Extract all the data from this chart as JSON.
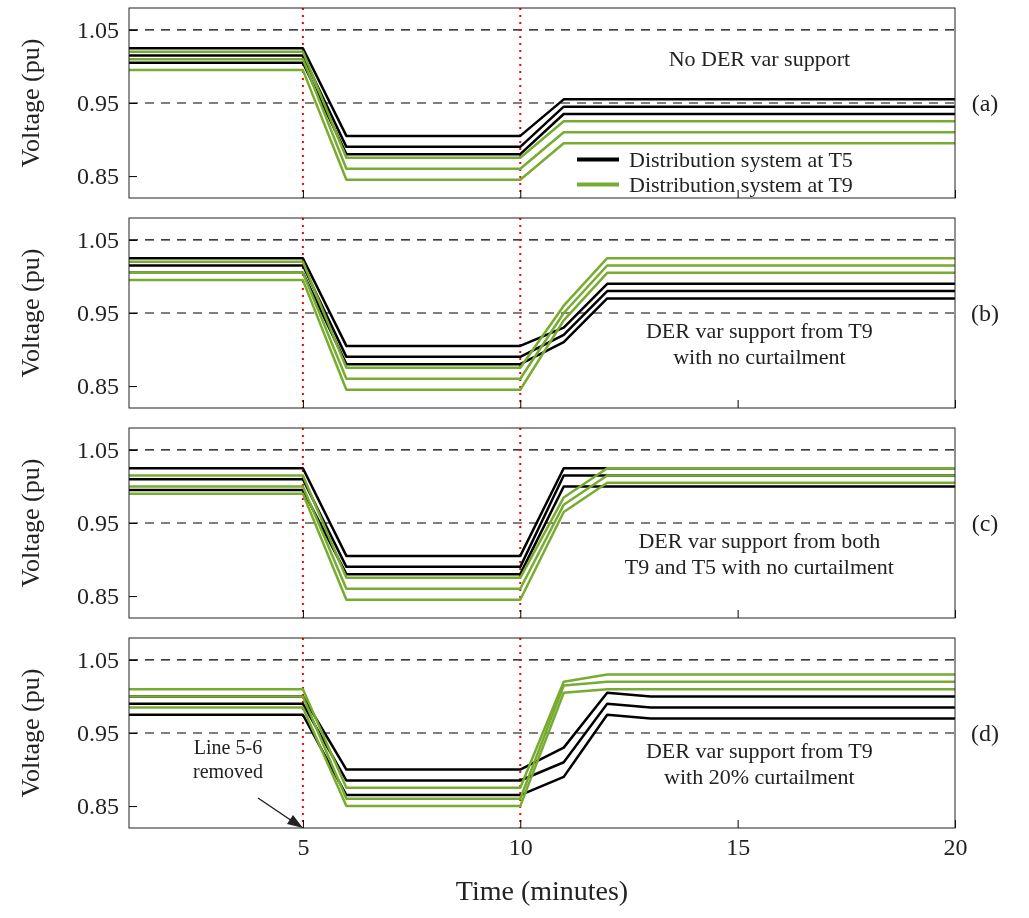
{
  "chart_data": [
    {
      "type": "line",
      "ylabel": "Voltage (pu)",
      "xlim": [
        1,
        20
      ],
      "ylim": [
        0.82,
        1.08
      ],
      "xticks": [
        5,
        10,
        15,
        20
      ],
      "yticks": [
        0.85,
        0.95,
        1.05
      ],
      "tick_labels": "y",
      "legend": "bottom right",
      "line_style": "solid",
      "marker": "none",
      "ref_lines": [
        {
          "axis": "y",
          "value": 1.05,
          "color": "#000000",
          "line_style": "dashed"
        },
        {
          "axis": "y",
          "value": 0.95,
          "color": "#000000",
          "line_style": "dashed"
        },
        {
          "axis": "x",
          "value": 5,
          "color": "#ff0000",
          "line_style": "dotted"
        },
        {
          "axis": "x",
          "value": 10,
          "color": "#ff0000",
          "line_style": "dotted"
        }
      ],
      "annotations": [
        "No DER var support",
        "(a)"
      ],
      "series": [
        {
          "name": "Distribution system at T5",
          "color": "#000000",
          "x": [
            1,
            5,
            6,
            10,
            11,
            20
          ],
          "values": [
            1.025,
            1.025,
            0.905,
            0.905,
            0.955,
            0.955
          ]
        },
        {
          "color": "#000000",
          "x": [
            1,
            5,
            6,
            10,
            11,
            20
          ],
          "values": [
            1.015,
            1.015,
            0.89,
            0.89,
            0.945,
            0.945
          ]
        },
        {
          "color": "#000000",
          "x": [
            1,
            5,
            6,
            10,
            11,
            20
          ],
          "values": [
            1.005,
            1.005,
            0.88,
            0.88,
            0.935,
            0.935
          ]
        },
        {
          "name": "Distribution system at T9",
          "color": "#77ac30",
          "x": [
            1,
            5,
            6,
            10,
            11,
            20
          ],
          "values": [
            1.02,
            1.02,
            0.875,
            0.875,
            0.925,
            0.925
          ]
        },
        {
          "color": "#77ac30",
          "x": [
            1,
            5,
            6,
            10,
            11,
            20
          ],
          "values": [
            1.01,
            1.01,
            0.86,
            0.86,
            0.91,
            0.91
          ]
        },
        {
          "color": "#77ac30",
          "x": [
            1,
            5,
            6,
            10,
            11,
            20
          ],
          "values": [
            0.995,
            0.995,
            0.845,
            0.845,
            0.895,
            0.895
          ]
        }
      ]
    },
    {
      "type": "line",
      "ylabel": "Voltage (pu)",
      "xlim": [
        1,
        20
      ],
      "ylim": [
        0.82,
        1.08
      ],
      "xticks": [
        5,
        10,
        15,
        20
      ],
      "yticks": [
        0.85,
        0.95,
        1.05
      ],
      "tick_labels": "y",
      "line_style": "solid",
      "marker": "none",
      "ref_lines": [
        {
          "axis": "y",
          "value": 1.05,
          "color": "#000000",
          "line_style": "dashed"
        },
        {
          "axis": "y",
          "value": 0.95,
          "color": "#000000",
          "line_style": "dashed"
        },
        {
          "axis": "x",
          "value": 5,
          "color": "#ff0000",
          "line_style": "dotted"
        },
        {
          "axis": "x",
          "value": 10,
          "color": "#ff0000",
          "line_style": "dotted"
        }
      ],
      "annotations": [
        "DER var support from T9\nwith no curtailment",
        "(b)"
      ],
      "series": [
        {
          "color": "#000000",
          "x": [
            1,
            5,
            6,
            10,
            11,
            12,
            20
          ],
          "values": [
            1.025,
            1.025,
            0.905,
            0.905,
            0.93,
            0.99,
            0.99
          ]
        },
        {
          "color": "#000000",
          "x": [
            1,
            5,
            6,
            10,
            11,
            12,
            20
          ],
          "values": [
            1.015,
            1.015,
            0.89,
            0.89,
            0.92,
            0.98,
            0.98
          ]
        },
        {
          "color": "#000000",
          "x": [
            1,
            5,
            6,
            10,
            11,
            12,
            20
          ],
          "values": [
            1.005,
            1.005,
            0.88,
            0.88,
            0.91,
            0.97,
            0.97
          ]
        },
        {
          "color": "#77ac30",
          "x": [
            1,
            5,
            6,
            10,
            11,
            12,
            20
          ],
          "values": [
            1.02,
            1.02,
            0.875,
            0.875,
            0.96,
            1.025,
            1.025
          ]
        },
        {
          "color": "#77ac30",
          "x": [
            1,
            5,
            6,
            10,
            11,
            12,
            20
          ],
          "values": [
            1.005,
            1.005,
            0.86,
            0.86,
            0.95,
            1.015,
            1.015
          ]
        },
        {
          "color": "#77ac30",
          "x": [
            1,
            5,
            6,
            10,
            11,
            12,
            20
          ],
          "values": [
            0.995,
            0.995,
            0.845,
            0.845,
            0.94,
            1.005,
            1.005
          ]
        }
      ]
    },
    {
      "type": "line",
      "ylabel": "Voltage (pu)",
      "xlim": [
        1,
        20
      ],
      "ylim": [
        0.82,
        1.08
      ],
      "xticks": [
        5,
        10,
        15,
        20
      ],
      "yticks": [
        0.85,
        0.95,
        1.05
      ],
      "tick_labels": "y",
      "line_style": "solid",
      "marker": "none",
      "ref_lines": [
        {
          "axis": "y",
          "value": 1.05,
          "color": "#000000",
          "line_style": "dashed"
        },
        {
          "axis": "y",
          "value": 0.95,
          "color": "#000000",
          "line_style": "dashed"
        },
        {
          "axis": "x",
          "value": 5,
          "color": "#ff0000",
          "line_style": "dotted"
        },
        {
          "axis": "x",
          "value": 10,
          "color": "#ff0000",
          "line_style": "dotted"
        }
      ],
      "annotations": [
        "DER var support from both\nT9 and T5 with no curtailment",
        "(c)"
      ],
      "series": [
        {
          "color": "#000000",
          "x": [
            1,
            5,
            6,
            10,
            11,
            12,
            20
          ],
          "values": [
            1.025,
            1.025,
            0.905,
            0.905,
            1.025,
            1.025,
            1.025
          ]
        },
        {
          "color": "#000000",
          "x": [
            1,
            5,
            6,
            10,
            11,
            12,
            20
          ],
          "values": [
            1.01,
            1.01,
            0.89,
            0.89,
            1.015,
            1.015,
            1.015
          ]
        },
        {
          "color": "#000000",
          "x": [
            1,
            5,
            6,
            10,
            11,
            12,
            20
          ],
          "values": [
            0.995,
            0.995,
            0.88,
            0.88,
            1.0,
            1.0,
            1.0
          ]
        },
        {
          "color": "#77ac30",
          "x": [
            1,
            5,
            6,
            10,
            11,
            12,
            20
          ],
          "values": [
            1.015,
            1.015,
            0.875,
            0.875,
            0.985,
            1.025,
            1.025
          ]
        },
        {
          "color": "#77ac30",
          "x": [
            1,
            5,
            6,
            10,
            11,
            12,
            20
          ],
          "values": [
            1.0,
            1.0,
            0.86,
            0.86,
            0.975,
            1.015,
            1.015
          ]
        },
        {
          "color": "#77ac30",
          "x": [
            1,
            5,
            6,
            10,
            11,
            12,
            20
          ],
          "values": [
            0.99,
            0.99,
            0.845,
            0.845,
            0.965,
            1.005,
            1.005
          ]
        }
      ]
    },
    {
      "type": "line",
      "ylabel": "Voltage (pu)",
      "xlabel": "Time (minutes)",
      "xlim": [
        1,
        20
      ],
      "ylim": [
        0.82,
        1.08
      ],
      "xticks": [
        5,
        10,
        15,
        20
      ],
      "yticks": [
        0.85,
        0.95,
        1.05
      ],
      "line_style": "solid",
      "marker": "none",
      "ref_lines": [
        {
          "axis": "y",
          "value": 1.05,
          "color": "#000000",
          "line_style": "dashed"
        },
        {
          "axis": "y",
          "value": 0.95,
          "color": "#000000",
          "line_style": "dashed"
        },
        {
          "axis": "x",
          "value": 5,
          "color": "#ff0000",
          "line_style": "dotted"
        },
        {
          "axis": "x",
          "value": 10,
          "color": "#ff0000",
          "line_style": "dotted"
        }
      ],
      "annotations": [
        "DER var support from T9\nwith 20% curtailment",
        "(d)",
        "Line 5-6\nremoved"
      ],
      "series": [
        {
          "color": "#000000",
          "x": [
            1,
            5,
            6,
            10,
            11,
            12,
            13,
            20
          ],
          "values": [
            1.0,
            1.0,
            0.9,
            0.9,
            0.93,
            1.005,
            1.0,
            1.0
          ]
        },
        {
          "color": "#000000",
          "x": [
            1,
            5,
            6,
            10,
            11,
            12,
            13,
            20
          ],
          "values": [
            0.99,
            0.99,
            0.885,
            0.885,
            0.91,
            0.99,
            0.985,
            0.985
          ]
        },
        {
          "color": "#000000",
          "x": [
            1,
            5,
            6,
            10,
            11,
            12,
            13,
            20
          ],
          "values": [
            0.975,
            0.975,
            0.865,
            0.865,
            0.89,
            0.975,
            0.97,
            0.97
          ]
        },
        {
          "color": "#77ac30",
          "x": [
            1,
            5,
            6,
            10,
            11,
            12,
            20
          ],
          "values": [
            1.01,
            1.01,
            0.875,
            0.875,
            1.02,
            1.03,
            1.03
          ]
        },
        {
          "color": "#77ac30",
          "x": [
            1,
            5,
            6,
            10,
            11,
            12,
            20
          ],
          "values": [
            1.0,
            1.0,
            0.86,
            0.86,
            1.015,
            1.02,
            1.02
          ]
        },
        {
          "color": "#77ac30",
          "x": [
            1,
            5,
            6,
            10,
            11,
            12,
            20
          ],
          "values": [
            0.985,
            0.985,
            0.85,
            0.85,
            1.005,
            1.01,
            1.01
          ]
        }
      ]
    }
  ]
}
